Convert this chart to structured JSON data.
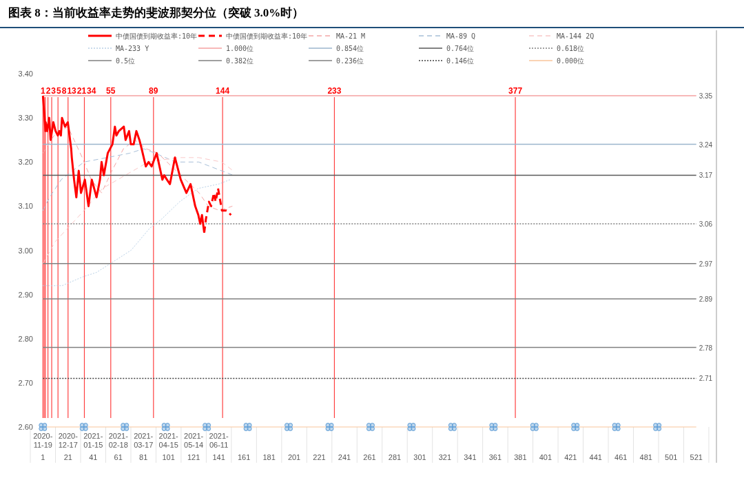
{
  "chart_data": {
    "type": "line",
    "title": "图表 8：当前收益率走势的斐波那契分位（突破 3.0%时）",
    "legend": "top",
    "xlim": [
      -3,
      525
    ],
    "xticks": [
      1,
      21,
      41,
      61,
      81,
      101,
      121,
      141,
      161,
      181,
      201,
      221,
      241,
      261,
      281,
      301,
      321,
      341,
      361,
      381,
      401,
      421,
      441,
      461,
      481,
      501,
      521
    ],
    "annotations": [
      "2020-11-19",
      "2020-12-17",
      "2021-01-15",
      "2021-02-18",
      "2021-03-17",
      "2021-04-15",
      "2021-05-14",
      "2021-06-11"
    ],
    "ylim": [
      2.6,
      3.4
    ],
    "yticks": [
      {
        "value": 2.6,
        "label": "2.60"
      },
      {
        "value": 2.7,
        "label": "2.70"
      },
      {
        "value": 2.8,
        "label": "2.80"
      },
      {
        "value": 2.9,
        "label": "2.90"
      },
      {
        "value": 3.0,
        "label": "3.00"
      },
      {
        "value": 3.1,
        "label": "3.10"
      },
      {
        "value": 3.2,
        "label": "3.20"
      },
      {
        "value": 3.3,
        "label": "3.30"
      },
      {
        "value": 3.4,
        "label": "3.40"
      }
    ],
    "series": [
      {
        "name": "中债国债到期收益率:10年",
        "type": "line",
        "color": "#ff0000",
        "line_style": "solid",
        "x": [
          1,
          2.1,
          3,
          3.2,
          4.4,
          6,
          7.1,
          9.3,
          11.1,
          12.9,
          14.1,
          15.3,
          16.2,
          18.6,
          20.8,
          23.5,
          24,
          25.8,
          27.6,
          29.5,
          31.3,
          34.4,
          37.3,
          39.9,
          43.7,
          46.4,
          47.7,
          49.5,
          52.6,
          56.3,
          58.3,
          59.5,
          61.4,
          65.4,
          66.8,
          69.6,
          71,
          73.2,
          75.4,
          77.8,
          79.6,
          82.9,
          85.1,
          87.5,
          91.5,
          96.1,
          97.5,
          99.7,
          102.1,
          106.1,
          110.7,
          115.2,
          118.5,
          122.2,
          124.7,
          126.2,
          127.6,
          129.4
        ],
        "values": [
          3.35,
          3.31,
          3.27,
          3.29,
          3.27,
          3.3,
          3.25,
          3.29,
          3.27,
          3.26,
          3.27,
          3.26,
          3.3,
          3.28,
          3.29,
          3.23,
          3.21,
          3.16,
          3.12,
          3.18,
          3.13,
          3.16,
          3.1,
          3.16,
          3.12,
          3.16,
          3.2,
          3.17,
          3.22,
          3.24,
          3.28,
          3.26,
          3.27,
          3.28,
          3.25,
          3.27,
          3.24,
          3.24,
          3.27,
          3.25,
          3.23,
          3.19,
          3.2,
          3.19,
          3.22,
          3.16,
          3.17,
          3.16,
          3.15,
          3.21,
          3.16,
          3.13,
          3.15,
          3.1,
          3.08,
          3.06,
          3.08,
          3.04
        ]
      },
      {
        "name": "中债国债到期收益率:10年",
        "type": "line",
        "color": "#ff0000",
        "line_style": "dashed",
        "x": [
          129.4,
          130.7,
          133.1,
          134.9,
          137.1,
          138.5,
          140.4,
          143.5,
          147.1,
          150.7
        ],
        "values": [
          3.04,
          3.07,
          3.11,
          3.1,
          3.13,
          3.11,
          3.14,
          3.09,
          3.09,
          3.08
        ]
      },
      {
        "name": "MA-21 M",
        "type": "line",
        "color": "#f4a6a6",
        "line_style": "dashed",
        "x": [
          1,
          9.9,
          20.8,
          25.8,
          32.3,
          39.5,
          47.7,
          55.9,
          65.1,
          74.2,
          83.3,
          92.5,
          103.4,
          114.4,
          125.3,
          132.6,
          141.7,
          151.8
        ],
        "values": [
          3.22,
          3.26,
          3.28,
          3.25,
          3.21,
          3.16,
          3.13,
          3.18,
          3.23,
          3.25,
          3.23,
          3.22,
          3.19,
          3.16,
          3.13,
          3.1,
          3.09,
          3.1
        ]
      },
      {
        "name": "MA-89 Q",
        "type": "line",
        "color": "#a7bfd8",
        "line_style": "dashed",
        "x": [
          1,
          6.3,
          15.5,
          33.7,
          52,
          70.2,
          81.1,
          90.3,
          106.7,
          125,
          143.3,
          152.4
        ],
        "values": [
          3.09,
          3.12,
          3.16,
          3.2,
          3.21,
          3.22,
          3.23,
          3.22,
          3.2,
          3.2,
          3.18,
          3.17
        ]
      },
      {
        "name": "MA-144 2Q",
        "type": "line",
        "color": "#f9c8c8",
        "line_style": "dashed",
        "x": [
          1,
          10.9,
          20.7,
          33.7,
          48.3,
          66.6,
          84.8,
          108.5,
          125,
          143.3,
          152.4
        ],
        "values": [
          2.97,
          3.02,
          3.05,
          3.09,
          3.14,
          3.17,
          3.2,
          3.21,
          3.21,
          3.2,
          3.18
        ]
      },
      {
        "name": "MA-233 Y",
        "type": "line",
        "color": "#b8d0e6",
        "line_style": "dotted",
        "x": [
          1,
          16.3,
          32.8,
          43.7,
          54.7,
          71.1,
          86,
          95.2,
          109.8,
          124.4,
          140.8,
          150
        ],
        "values": [
          2.92,
          2.92,
          2.94,
          2.95,
          2.97,
          3.0,
          3.05,
          3.07,
          3.11,
          3.14,
          3.15,
          3.16
        ]
      },
      {
        "name": "1.000位",
        "type": "line",
        "color": "#f4a0a0",
        "line_style": "solid",
        "x": [
          1,
          521
        ],
        "values": [
          3.35,
          3.35
        ],
        "value_labels": [
          null,
          "3.35"
        ]
      },
      {
        "name": "0.854位",
        "type": "line",
        "color": "#9bb5cc",
        "line_style": "solid",
        "x": [
          1,
          521
        ],
        "values": [
          3.24,
          3.24
        ],
        "value_labels": [
          null,
          "3.24"
        ]
      },
      {
        "name": "0.764位",
        "type": "line",
        "color": "#595959",
        "line_style": "solid",
        "x": [
          1,
          521
        ],
        "values": [
          3.17,
          3.17
        ],
        "value_labels": [
          null,
          "3.17"
        ]
      },
      {
        "name": "0.618位",
        "type": "line",
        "color": "#808080",
        "line_style": "dotted",
        "x": [
          1,
          521
        ],
        "values": [
          3.06,
          3.06
        ],
        "value_labels": [
          null,
          "3.06"
        ]
      },
      {
        "name": "0.5位",
        "type": "line",
        "color": "#7f7f7f",
        "line_style": "solid",
        "x": [
          1,
          521
        ],
        "values": [
          2.97,
          2.97
        ],
        "value_labels": [
          null,
          "2.97"
        ]
      },
      {
        "name": "0.382位",
        "type": "line",
        "color": "#7f7f7f",
        "line_style": "solid",
        "x": [
          1,
          521
        ],
        "values": [
          2.89,
          2.89
        ],
        "value_labels": [
          null,
          "2.89"
        ]
      },
      {
        "name": "0.236位",
        "type": "line",
        "color": "#7f7f7f",
        "line_style": "solid",
        "x": [
          1,
          521
        ],
        "values": [
          2.78,
          2.78
        ],
        "value_labels": [
          null,
          "2.78"
        ]
      },
      {
        "name": "0.146位",
        "type": "line",
        "color": "#404040",
        "line_style": "dotted",
        "x": [
          1,
          521
        ],
        "values": [
          2.71,
          2.71
        ],
        "value_labels": [
          null,
          "2.71"
        ]
      },
      {
        "name": "0.000位",
        "type": "line",
        "color": "#f8c49a",
        "line_style": "solid",
        "x": [
          1,
          521
        ],
        "values": [
          2.6,
          2.6
        ]
      },
      {
        "type": "scatter",
        "color": "#5b9bd5",
        "marker": "cross",
        "x": [
          1,
          33.6,
          66.2,
          98.8,
          131.4,
          164,
          196.6,
          229.2,
          261.8,
          294.4,
          327,
          359.6,
          392.2,
          424.8,
          457.4,
          490
        ],
        "values": [
          2.6,
          2.6,
          2.6,
          2.6,
          2.6,
          2.6,
          2.6,
          2.6,
          2.6,
          2.6,
          2.6,
          2.6,
          2.6,
          2.6,
          2.6,
          2.6
        ]
      }
    ],
    "ref_lines": [
      {
        "axis": "x",
        "value": 1,
        "label": "1",
        "color": "#ff0000"
      },
      {
        "axis": "x",
        "value": 2,
        "label": "2",
        "color": "#ff0000"
      },
      {
        "axis": "x",
        "value": 3,
        "label": "3",
        "color": "#ff0000"
      },
      {
        "axis": "x",
        "value": 5,
        "label": "5",
        "color": "#ff0000"
      },
      {
        "axis": "x",
        "value": 8,
        "label": "8",
        "color": "#ff0000"
      },
      {
        "axis": "x",
        "value": 13,
        "label": "13",
        "color": "#ff0000"
      },
      {
        "axis": "x",
        "value": 21,
        "label": "21",
        "color": "#ff0000"
      },
      {
        "axis": "x",
        "value": 34,
        "label": "34",
        "color": "#ff0000"
      },
      {
        "axis": "x",
        "value": 55,
        "label": "55",
        "color": "#ff0000"
      },
      {
        "axis": "x",
        "value": 89,
        "label": "89",
        "color": "#ff0000"
      },
      {
        "axis": "x",
        "value": 144,
        "label": "144",
        "color": "#ff0000"
      },
      {
        "axis": "x",
        "value": 233,
        "label": "233",
        "color": "#ff0000"
      },
      {
        "axis": "x",
        "value": 377,
        "label": "377",
        "color": "#ff0000"
      }
    ]
  }
}
